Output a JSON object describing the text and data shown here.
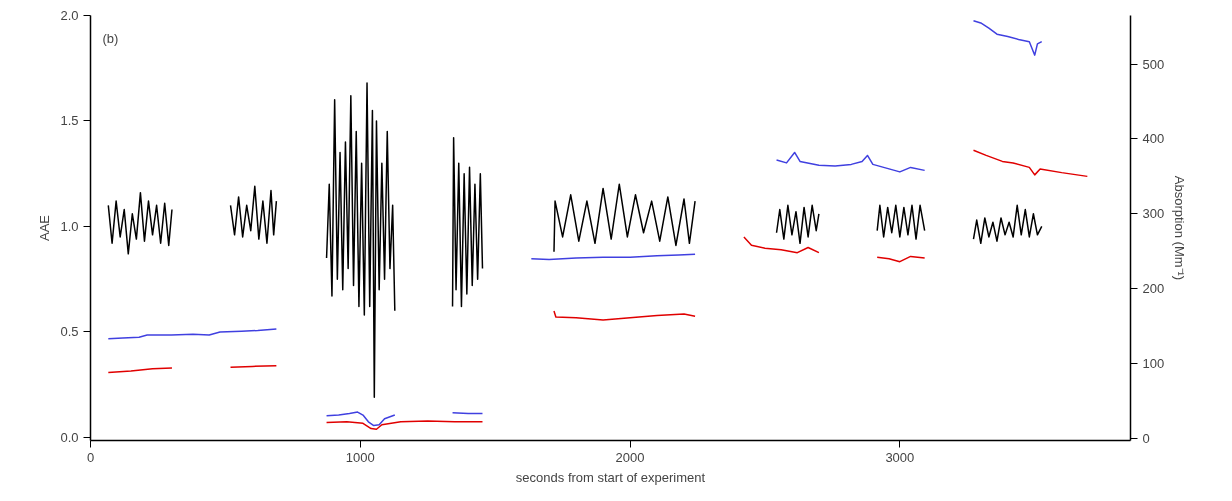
{
  "chart_data": {
    "type": "line",
    "xlabel": "seconds from start of experiment",
    "ylabel": "AAE",
    "y2label": "Absorption (Mm⁻¹)",
    "annotations": [
      "(b)"
    ],
    "xlim": [
      0,
      3855
    ],
    "xticks": [
      0,
      1000,
      2000,
      3000
    ],
    "ylim": [
      -0.015,
      2.0
    ],
    "yticks": [
      {
        "value": 0,
        "label": "0.0"
      },
      {
        "value": 0.5,
        "label": "0.5"
      },
      {
        "value": 1,
        "label": "1.0"
      },
      {
        "value": 1.5,
        "label": "1.5"
      },
      {
        "value": 2,
        "label": "2.0"
      }
    ],
    "y2lim": [
      -3,
      565
    ],
    "y2ticks": [
      0,
      100,
      200,
      300,
      400,
      500
    ],
    "grid": false,
    "line_style": "solid",
    "marker": "none",
    "series": [
      {
        "color": "#000000",
        "x": [
          66,
          80,
          95,
          110,
          125,
          140,
          155,
          170,
          185,
          200,
          215,
          230,
          245,
          260,
          275,
          290,
          302,
          410,
          519,
          534,
          549,
          564,
          579,
          594,
          609,
          624,
          639,
          654,
          669,
          679,
          689,
          780,
          875,
          885,
          895,
          905,
          915,
          925,
          935,
          945,
          955,
          965,
          975,
          985,
          995,
          1005,
          1015,
          1025,
          1035,
          1045,
          1052,
          1060,
          1070,
          1080,
          1090,
          1100,
          1110,
          1120,
          1128,
          1230,
          1342,
          1346,
          1355,
          1365,
          1375,
          1385,
          1395,
          1405,
          1415,
          1425,
          1435,
          1445,
          1453,
          1580,
          1718,
          1722,
          1750,
          1780,
          1810,
          1840,
          1870,
          1900,
          1930,
          1960,
          1990,
          2020,
          2050,
          2080,
          2110,
          2140,
          2170,
          2200,
          2220,
          2241,
          2400,
          2543,
          2555,
          2570,
          2585,
          2600,
          2615,
          2630,
          2645,
          2660,
          2675,
          2690,
          2700,
          2800,
          2916,
          2926,
          2940,
          2955,
          2970,
          2985,
          3000,
          3015,
          3030,
          3045,
          3060,
          3075,
          3092,
          3180,
          3273,
          3285,
          3300,
          3315,
          3330,
          3345,
          3360,
          3375,
          3390,
          3405,
          3420,
          3435,
          3450,
          3465,
          3480,
          3495,
          3510,
          3526
        ],
        "values": [
          1.1,
          0.92,
          1.12,
          0.95,
          1.08,
          0.87,
          1.06,
          0.94,
          1.16,
          0.93,
          1.12,
          0.96,
          1.1,
          0.92,
          1.11,
          0.91,
          1.08,
          null,
          1.1,
          0.96,
          1.14,
          0.95,
          1.1,
          0.98,
          1.19,
          0.94,
          1.12,
          0.92,
          1.17,
          0.96,
          1.12,
          null,
          0.85,
          1.2,
          0.67,
          1.6,
          0.75,
          1.35,
          0.7,
          1.4,
          0.8,
          1.62,
          0.72,
          1.45,
          0.62,
          1.3,
          0.58,
          1.68,
          0.62,
          1.55,
          0.19,
          1.5,
          0.7,
          1.3,
          0.75,
          1.45,
          0.8,
          1.1,
          0.6,
          null,
          0.62,
          1.42,
          0.7,
          1.3,
          0.62,
          1.25,
          0.68,
          1.28,
          0.72,
          1.2,
          0.75,
          1.25,
          0.8,
          null,
          0.88,
          1.12,
          0.95,
          1.15,
          0.93,
          1.12,
          0.92,
          1.18,
          0.94,
          1.2,
          0.95,
          1.15,
          0.97,
          1.12,
          0.93,
          1.14,
          0.91,
          1.13,
          0.92,
          1.12,
          null,
          0.97,
          1.08,
          0.94,
          1.1,
          0.96,
          1.07,
          0.92,
          1.09,
          0.95,
          1.1,
          0.98,
          1.06,
          null,
          0.98,
          1.1,
          0.95,
          1.09,
          0.97,
          1.1,
          0.95,
          1.09,
          0.96,
          1.1,
          0.94,
          1.1,
          0.98,
          null,
          0.94,
          1.03,
          0.92,
          1.04,
          0.95,
          1.02,
          0.93,
          1.04,
          0.96,
          1.02,
          0.95,
          1.1,
          0.96,
          1.08,
          0.95,
          1.06,
          0.96,
          1.0
        ]
      },
      {
        "color": "#4040e0",
        "axis": "y2",
        "x": [
          66,
          120,
          180,
          210,
          300,
          380,
          440,
          480,
          560,
          620,
          689,
          780,
          875,
          920,
          960,
          990,
          1010,
          1030,
          1050,
          1070,
          1090,
          1128,
          1250,
          1342,
          1400,
          1453,
          1550,
          1634,
          1700,
          1800,
          1900,
          2000,
          2100,
          2180,
          2241,
          2400,
          2543,
          2580,
          2610,
          2630,
          2700,
          2760,
          2820,
          2860,
          2880,
          2900,
          2960,
          3000,
          3040,
          3092,
          3180,
          3273,
          3300,
          3330,
          3360,
          3400,
          3440,
          3480,
          3500,
          3510,
          3526
        ],
        "values": [
          133,
          134,
          135,
          138,
          138,
          139,
          138,
          142,
          143,
          144,
          146,
          null,
          30,
          31,
          33,
          35,
          31,
          22,
          17,
          18,
          26,
          31,
          null,
          34,
          33,
          33,
          null,
          240,
          239,
          241,
          242,
          242,
          244,
          245,
          246,
          null,
          372,
          368,
          382,
          370,
          365,
          364,
          366,
          370,
          378,
          366,
          360,
          356,
          362,
          358,
          null,
          558,
          555,
          548,
          540,
          537,
          533,
          530,
          512,
          527,
          530
        ]
      },
      {
        "color": "#e00000",
        "axis": "y2",
        "x": [
          66,
          150,
          230,
          302,
          410,
          519,
          600,
          689,
          780,
          875,
          950,
          1010,
          1040,
          1060,
          1080,
          1150,
          1250,
          1350,
          1453,
          1580,
          1718,
          1725,
          1800,
          1900,
          2000,
          2100,
          2200,
          2241,
          2350,
          2422,
          2450,
          2500,
          2560,
          2620,
          2660,
          2700,
          2800,
          2916,
          2960,
          3000,
          3040,
          3092,
          3180,
          3273,
          3320,
          3380,
          3420,
          3480,
          3500,
          3520,
          3600,
          3695
        ],
        "values": [
          88,
          90,
          93,
          94,
          null,
          95,
          96,
          97,
          null,
          21,
          22,
          20,
          13,
          12,
          18,
          22,
          23,
          22,
          22,
          null,
          170,
          162,
          161,
          158,
          161,
          164,
          166,
          163,
          null,
          269,
          258,
          254,
          252,
          248,
          255,
          248,
          null,
          242,
          240,
          236,
          243,
          241,
          null,
          385,
          378,
          370,
          368,
          362,
          352,
          360,
          355,
          350
        ]
      }
    ]
  }
}
